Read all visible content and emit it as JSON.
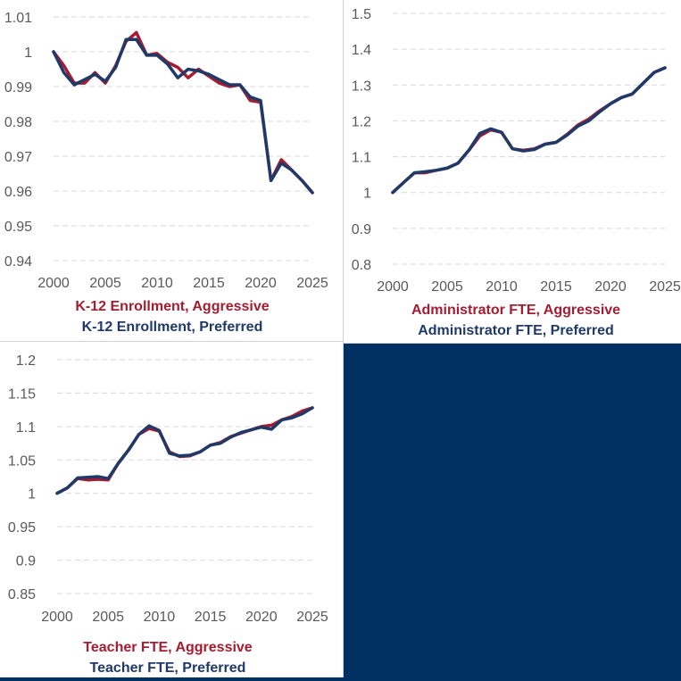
{
  "colors": {
    "aggressive": "#A51C30",
    "preferred": "#1F3A68",
    "navy_block": "#002F62",
    "grid": "#d9d9d9",
    "tick_text": "#595959"
  },
  "chart_data": [
    {
      "type": "line",
      "x": [
        2000,
        2001,
        2002,
        2003,
        2004,
        2005,
        2006,
        2007,
        2008,
        2009,
        2010,
        2011,
        2012,
        2013,
        2014,
        2015,
        2016,
        2017,
        2018,
        2019,
        2020,
        2021,
        2022,
        2023,
        2024,
        2025
      ],
      "series": [
        {
          "name": "K-12 Enrollment, Aggressive",
          "values": [
            1.0,
            0.996,
            0.991,
            0.991,
            0.994,
            0.991,
            0.996,
            1.003,
            1.0055,
            0.999,
            0.9995,
            0.997,
            0.9955,
            0.9925,
            0.995,
            0.993,
            0.991,
            0.99,
            0.9905,
            0.986,
            0.9855,
            0.963,
            0.969,
            0.966,
            0.963,
            0.9595
          ]
        },
        {
          "name": "K-12 Enrollment, Preferred",
          "values": [
            1.0,
            0.994,
            0.9905,
            0.992,
            0.9935,
            0.9915,
            0.9955,
            1.0035,
            1.0035,
            0.999,
            0.999,
            0.9965,
            0.9925,
            0.995,
            0.9945,
            0.9935,
            0.992,
            0.9905,
            0.9905,
            0.987,
            0.986,
            0.963,
            0.968,
            0.966,
            0.963,
            0.9595
          ]
        }
      ],
      "xticks": [
        "2000",
        "2005",
        "2010",
        "2015",
        "2020",
        "2025"
      ],
      "yticks": [
        "0.94",
        "0.95",
        "0.96",
        "0.97",
        "0.98",
        "0.99",
        "1",
        "1.01"
      ],
      "ylim": [
        0.94,
        1.01
      ],
      "xlim": [
        2000,
        2025
      ],
      "grid": true
    },
    {
      "type": "line",
      "x": [
        2000,
        2001,
        2002,
        2003,
        2004,
        2005,
        2006,
        2007,
        2008,
        2009,
        2010,
        2011,
        2012,
        2013,
        2014,
        2015,
        2016,
        2017,
        2018,
        2019,
        2020,
        2021,
        2022,
        2023,
        2024,
        2025
      ],
      "series": [
        {
          "name": "Administrator FTE, Aggressive",
          "values": [
            1.0,
            1.028,
            1.055,
            1.055,
            1.062,
            1.068,
            1.082,
            1.118,
            1.158,
            1.175,
            1.168,
            1.122,
            1.118,
            1.122,
            1.135,
            1.14,
            1.162,
            1.188,
            1.205,
            1.228,
            1.248,
            1.265,
            1.275,
            1.305,
            1.335,
            1.348
          ]
        },
        {
          "name": "Administrator FTE, Preferred",
          "values": [
            1.0,
            1.028,
            1.055,
            1.058,
            1.062,
            1.068,
            1.082,
            1.118,
            1.165,
            1.178,
            1.168,
            1.122,
            1.116,
            1.12,
            1.135,
            1.14,
            1.16,
            1.185,
            1.2,
            1.225,
            1.248,
            1.265,
            1.275,
            1.305,
            1.335,
            1.348
          ]
        }
      ],
      "xticks": [
        "2000",
        "2005",
        "2010",
        "2015",
        "2020",
        "2025"
      ],
      "yticks": [
        "0.8",
        "0.9",
        "1",
        "1.1",
        "1.2",
        "1.3",
        "1.4",
        "1.5"
      ],
      "ylim": [
        0.8,
        1.5
      ],
      "xlim": [
        2000,
        2025
      ],
      "grid": true
    },
    {
      "type": "line",
      "x": [
        2000,
        2001,
        2002,
        2003,
        2004,
        2005,
        2006,
        2007,
        2008,
        2009,
        2010,
        2011,
        2012,
        2013,
        2014,
        2015,
        2016,
        2017,
        2018,
        2019,
        2020,
        2021,
        2022,
        2023,
        2024,
        2025
      ],
      "series": [
        {
          "name": "Teacher FTE, Aggressive",
          "values": [
            1.0,
            1.008,
            1.022,
            1.02,
            1.021,
            1.02,
            1.045,
            1.065,
            1.088,
            1.097,
            1.093,
            1.062,
            1.055,
            1.056,
            1.062,
            1.072,
            1.076,
            1.085,
            1.09,
            1.095,
            1.1,
            1.102,
            1.11,
            1.115,
            1.123,
            1.128
          ]
        },
        {
          "name": "Teacher FTE, Preferred",
          "values": [
            1.0,
            1.008,
            1.023,
            1.024,
            1.025,
            1.022,
            1.045,
            1.065,
            1.088,
            1.101,
            1.094,
            1.06,
            1.056,
            1.057,
            1.062,
            1.072,
            1.075,
            1.084,
            1.091,
            1.095,
            1.099,
            1.096,
            1.11,
            1.113,
            1.119,
            1.128
          ]
        }
      ],
      "xticks": [
        "2000",
        "2005",
        "2010",
        "2015",
        "2020",
        "2025"
      ],
      "yticks": [
        "0.85",
        "0.9",
        "0.95",
        "1",
        "1.05",
        "1.1",
        "1.15",
        "1.2"
      ],
      "ylim": [
        0.85,
        1.2
      ],
      "xlim": [
        2000,
        2025
      ],
      "grid": true
    }
  ]
}
